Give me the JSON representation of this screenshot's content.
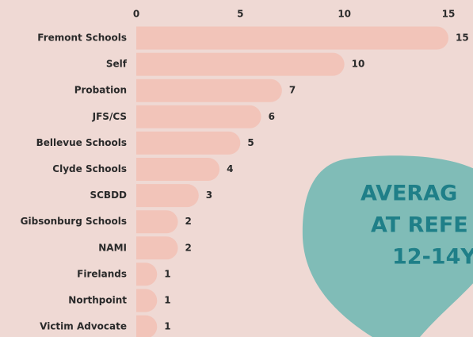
{
  "chart_data": {
    "type": "bar",
    "orientation": "horizontal",
    "categories": [
      "Fremont Schools",
      "Self",
      "Probation",
      "JFS/CS",
      "Bellevue Schools",
      "Clyde Schools",
      "SCBDD",
      "Gibsonburg Schools",
      "NAMI",
      "Firelands",
      "Northpoint",
      "Victim Advocate"
    ],
    "values": [
      15,
      10,
      7,
      6,
      5,
      4,
      3,
      2,
      2,
      1,
      1,
      1
    ],
    "color": "#f2c4b9",
    "xlim": [
      0,
      15
    ],
    "xticks": [
      0,
      5,
      10,
      15
    ],
    "annotation": [
      "AVERAG",
      "AT REFE",
      "12-14Y"
    ]
  }
}
